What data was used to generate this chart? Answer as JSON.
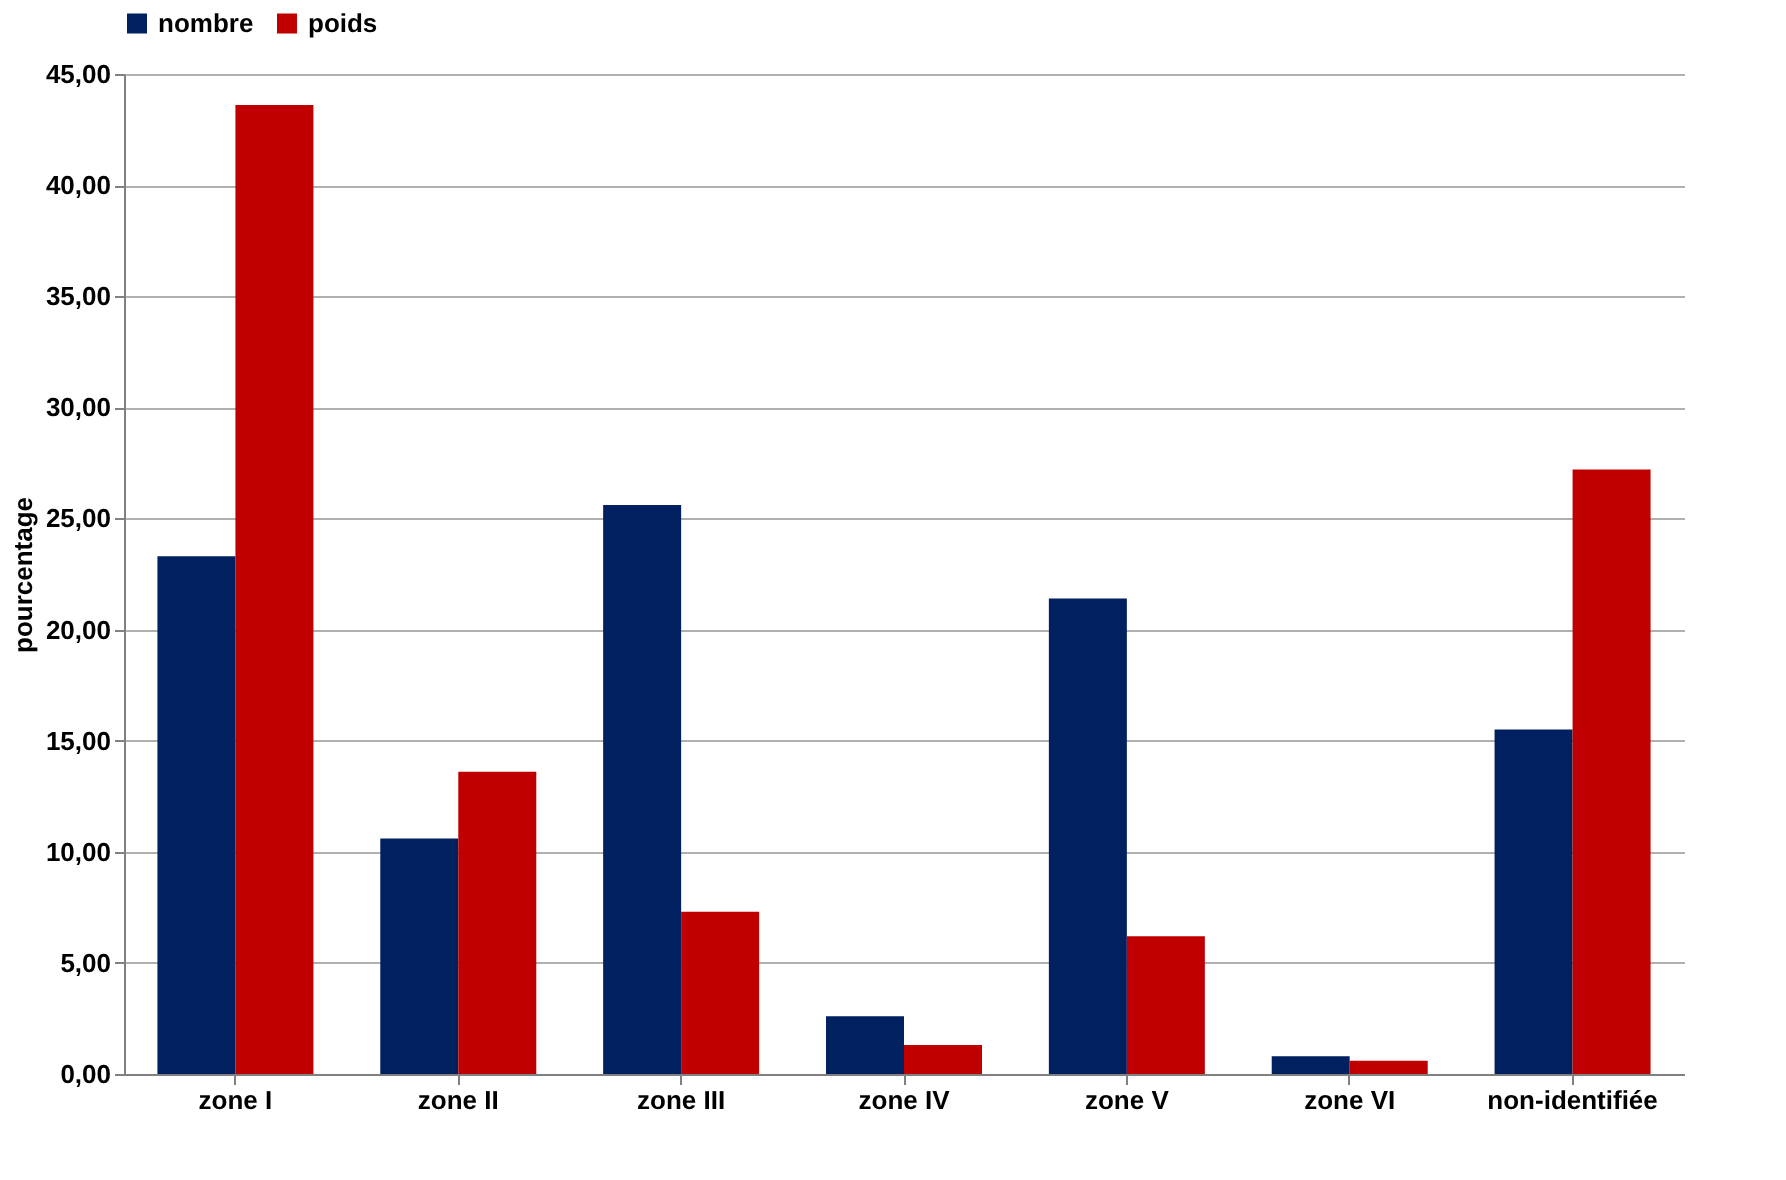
{
  "chart_data": {
    "type": "bar",
    "ylabel": "pourcentage",
    "categories": [
      "zone I",
      "zone II",
      "zone III",
      "zone IV",
      "zone V",
      "zone VI",
      "non-identifiée"
    ],
    "series": [
      {
        "name": "nombre",
        "color": "#002060",
        "values": [
          23.3,
          10.6,
          25.6,
          2.6,
          21.4,
          0.8,
          15.5
        ]
      },
      {
        "name": "poids",
        "color": "#c00000",
        "values": [
          43.6,
          13.6,
          7.3,
          1.3,
          6.2,
          0.6,
          27.2
        ]
      }
    ],
    "ylim": [
      0,
      45
    ],
    "yticks": [
      {
        "value": 0,
        "label": "0,00"
      },
      {
        "value": 5,
        "label": "5,00"
      },
      {
        "value": 10,
        "label": "10,00"
      },
      {
        "value": 15,
        "label": "15,00"
      },
      {
        "value": 20,
        "label": "20,00"
      },
      {
        "value": 25,
        "label": "25,00"
      },
      {
        "value": 30,
        "label": "30,00"
      },
      {
        "value": 35,
        "label": "35,00"
      },
      {
        "value": 40,
        "label": "40,00"
      },
      {
        "value": 45,
        "label": "45,00"
      }
    ],
    "grid": "y",
    "legend": "top"
  }
}
